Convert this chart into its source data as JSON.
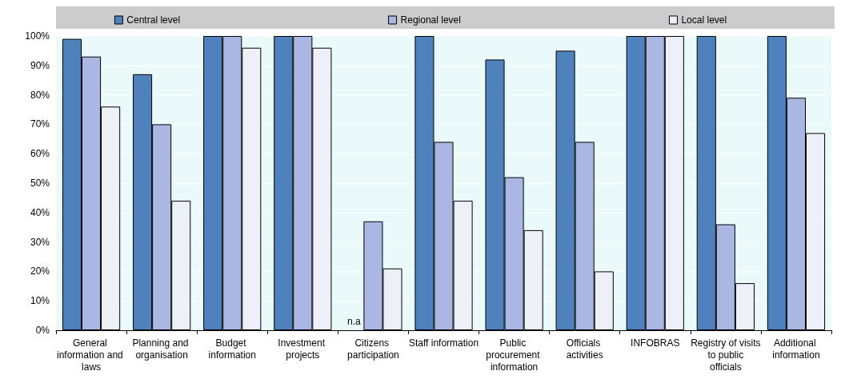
{
  "chart_data": {
    "type": "bar",
    "categories": [
      "General information and laws",
      "Planning and organisation",
      "Budget information",
      "Investment projects",
      "Citizens participation",
      "Staff information",
      "Public procurement information",
      "Officials activities",
      "INFOBRAS",
      "Registry of visits to public officials",
      "Additional information"
    ],
    "series": [
      {
        "name": "Central level",
        "color": "#4f81bd",
        "values": [
          99,
          87,
          100,
          100,
          null,
          100,
          92,
          95,
          100,
          100,
          100
        ]
      },
      {
        "name": "Regional level",
        "color": "#a9b7e2",
        "values": [
          93,
          70,
          100,
          100,
          37,
          64,
          52,
          64,
          100,
          36,
          79
        ]
      },
      {
        "name": "Local level",
        "color": "#eef0f8",
        "values": [
          76,
          44,
          96,
          96,
          21,
          44,
          34,
          20,
          100,
          16,
          67
        ]
      }
    ],
    "ylim": [
      0,
      100
    ],
    "yticks": [
      {
        "value": 0,
        "label": "0%"
      },
      {
        "value": 10,
        "label": "10%"
      },
      {
        "value": 20,
        "label": "20%"
      },
      {
        "value": 30,
        "label": "30%"
      },
      {
        "value": 40,
        "label": "40%"
      },
      {
        "value": 50,
        "label": "50%"
      },
      {
        "value": 60,
        "label": "60%"
      },
      {
        "value": 70,
        "label": "70%"
      },
      {
        "value": 80,
        "label": "80%"
      },
      {
        "value": 90,
        "label": "90%"
      },
      {
        "value": 100,
        "label": "100%"
      }
    ],
    "annotations": [
      {
        "text": "n.a",
        "x": "Citizens participation",
        "y": 0
      }
    ],
    "grid": "y",
    "legend": "top"
  }
}
